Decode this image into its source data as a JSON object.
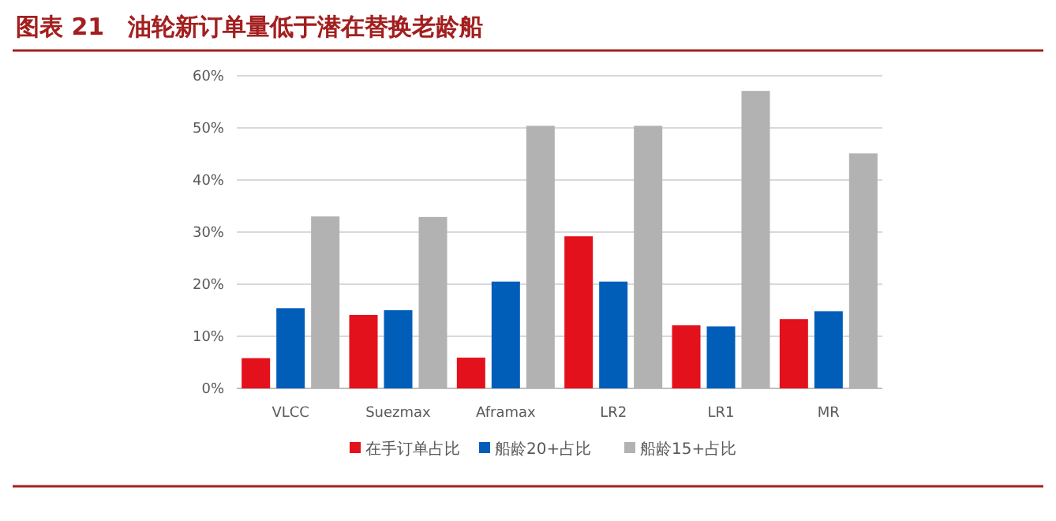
{
  "chart_data": {
    "type": "bar",
    "title": "图表 21　油轮新订单量低于潜在替换老龄船",
    "categories": [
      "VLCC",
      "Suezmax",
      "Aframax",
      "LR2",
      "LR1",
      "MR"
    ],
    "series": [
      {
        "name": "在手订单占比",
        "color": "#e3111b",
        "values": [
          5.8,
          14.1,
          5.9,
          29.2,
          12.1,
          13.3
        ]
      },
      {
        "name": "船龄20+占比",
        "color": "#005eb8",
        "values": [
          15.4,
          15.0,
          20.5,
          20.5,
          11.9,
          14.8
        ]
      },
      {
        "name": "船龄15+占比",
        "color": "#b2b2b2",
        "values": [
          33.0,
          32.9,
          50.4,
          50.4,
          57.1,
          45.1
        ]
      }
    ],
    "ylim": [
      0,
      60
    ],
    "yticks": [
      {
        "value": 0,
        "label": "0%"
      },
      {
        "value": 10,
        "label": "10%"
      },
      {
        "value": 20,
        "label": "20%"
      },
      {
        "value": 30,
        "label": "30%"
      },
      {
        "value": 40,
        "label": "40%"
      },
      {
        "value": 50,
        "label": "50%"
      },
      {
        "value": 60,
        "label": "60%"
      }
    ],
    "grid": "y",
    "legend": "bottom"
  }
}
